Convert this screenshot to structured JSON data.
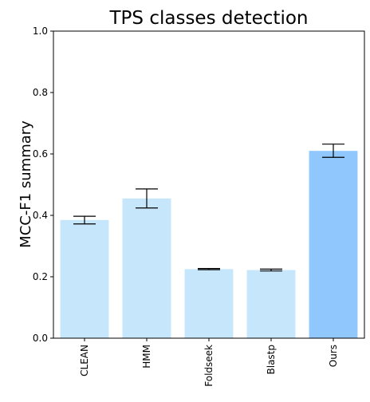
{
  "chart_data": {
    "type": "bar",
    "title": "TPS classes detection",
    "xlabel": "",
    "ylabel": "MCC-F1 summary",
    "ylim": [
      0,
      1.0
    ],
    "yticks": [
      "0.0",
      "0.2",
      "0.4",
      "0.6",
      "0.8",
      "1.0"
    ],
    "categories": [
      "CLEAN",
      "HMM",
      "Foldseek",
      "Blastp",
      "Ours"
    ],
    "values": [
      0.385,
      0.455,
      0.225,
      0.222,
      0.61
    ],
    "error_low": [
      0.372,
      0.424,
      0.223,
      0.219,
      0.589
    ],
    "error_high": [
      0.397,
      0.486,
      0.227,
      0.225,
      0.632
    ],
    "colors": [
      "#c5e6fb",
      "#c5e6fb",
      "#c5e6fb",
      "#c5e6fb",
      "#90c8fd"
    ],
    "grid": false,
    "legend": "none"
  }
}
